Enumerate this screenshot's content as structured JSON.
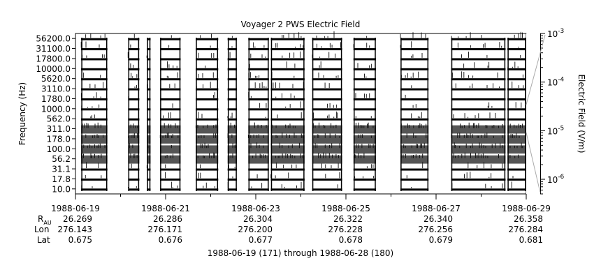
{
  "chart_data": {
    "type": "heatmap",
    "title": "Voyager 2 PWS Electric Field",
    "ylabel": "Frequency (Hz)",
    "colorbar_label": "Electric Field (V/m)",
    "colorbar_scale": "log",
    "colorbar_range": [
      5e-07,
      0.001
    ],
    "colorbar_ticks": [
      {
        "mant": "10",
        "exp": "-3",
        "value": 0.001
      },
      {
        "mant": "10",
        "exp": "-4",
        "value": 0.0001
      },
      {
        "mant": "10",
        "exp": "-5",
        "value": 1e-05
      },
      {
        "mant": "10",
        "exp": "-6",
        "value": 1e-06
      }
    ],
    "channels": [
      "56200.0",
      "31100.0",
      "17800.0",
      "10000.0",
      "5620.0",
      "3110.0",
      "1780.0",
      "1000.0",
      "562.0",
      "311.0",
      "178.0",
      "100.0",
      "56.2",
      "31.1",
      "17.8",
      "10.0"
    ],
    "x_range": [
      "1988-06-19",
      "1988-06-29"
    ],
    "x_ticks": [
      "1988-06-19",
      "1988-06-21",
      "1988-06-23",
      "1988-06-25",
      "1988-06-27",
      "1988-06-29"
    ],
    "data_intervals": [
      [
        "1988-06-19T03:00",
        "1988-06-19T17:00"
      ],
      [
        "1988-06-20T04:00",
        "1988-06-20T10:00"
      ],
      [
        "1988-06-20T14:00",
        "1988-06-20T16:00"
      ],
      [
        "1988-06-20T21:00",
        "1988-06-21T08:00"
      ],
      [
        "1988-06-21T16:00",
        "1988-06-22T04:00"
      ],
      [
        "1988-06-22T09:00",
        "1988-06-22T14:00"
      ],
      [
        "1988-06-22T20:00",
        "1988-06-23T07:00"
      ],
      [
        "1988-06-23T08:00",
        "1988-06-24T02:00"
      ],
      [
        "1988-06-24T06:00",
        "1988-06-24T22:00"
      ],
      [
        "1988-06-25T04:00",
        "1988-06-25T16:00"
      ],
      [
        "1988-06-26T05:00",
        "1988-06-26T20:00"
      ],
      [
        "1988-06-27T08:00",
        "1988-06-28T13:00"
      ],
      [
        "1988-06-28T14:00",
        "1988-06-29T00:00"
      ]
    ],
    "ephemeris": {
      "labels": {
        "r_main": "R",
        "r_sub": "AU",
        "lon": "Lon",
        "lat": "Lat"
      },
      "r_au": [
        "26.269",
        "26.286",
        "26.304",
        "26.322",
        "26.340",
        "26.358"
      ],
      "lon": [
        "276.143",
        "276.171",
        "276.200",
        "276.228",
        "276.256",
        "276.284"
      ],
      "lat": [
        "0.675",
        "0.676",
        "0.677",
        "0.678",
        "0.679",
        "0.681"
      ]
    },
    "footer": "1988-06-19 (171) through 1988-06-28 (180)"
  }
}
